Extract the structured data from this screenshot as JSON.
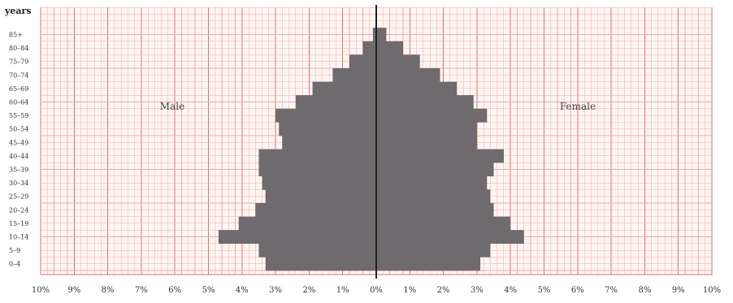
{
  "chart_data": {
    "type": "bar",
    "orientation": "population-pyramid",
    "y_unit_label": "years",
    "left_label": "Male",
    "right_label": "Female",
    "x_tick_labels": [
      "10%",
      "9%",
      "8%",
      "7%",
      "6%",
      "5%",
      "4%",
      "3%",
      "2%",
      "1%",
      "0%",
      "1%",
      "2%",
      "3%",
      "4%",
      "5%",
      "6%",
      "7%",
      "8%",
      "9%",
      "10%"
    ],
    "xlim": [
      -10,
      10
    ],
    "grid": true,
    "categories": [
      "0–4",
      "5–9",
      "10–14",
      "15–19",
      "20–24",
      "25–29",
      "30–34",
      "35–39",
      "40–44",
      "45–49",
      "50–54",
      "55–59",
      "60–64",
      "65–69",
      "70–74",
      "75–79",
      "80–84",
      "85+"
    ],
    "series": [
      {
        "name": "Male",
        "values": [
          3.3,
          3.5,
          4.7,
          4.1,
          3.6,
          3.3,
          3.4,
          3.5,
          3.5,
          2.8,
          2.9,
          3.0,
          2.4,
          1.9,
          1.3,
          0.8,
          0.4,
          0.1
        ]
      },
      {
        "name": "Female",
        "values": [
          3.1,
          3.4,
          4.4,
          4.0,
          3.5,
          3.4,
          3.3,
          3.5,
          3.8,
          3.0,
          3.0,
          3.3,
          2.9,
          2.4,
          1.9,
          1.3,
          0.8,
          0.3
        ]
      }
    ],
    "colors": {
      "bar": "#6f6a6d",
      "grid_minor": "#f2a8a8",
      "grid_major": "#e07070",
      "axis": "#222222"
    }
  }
}
